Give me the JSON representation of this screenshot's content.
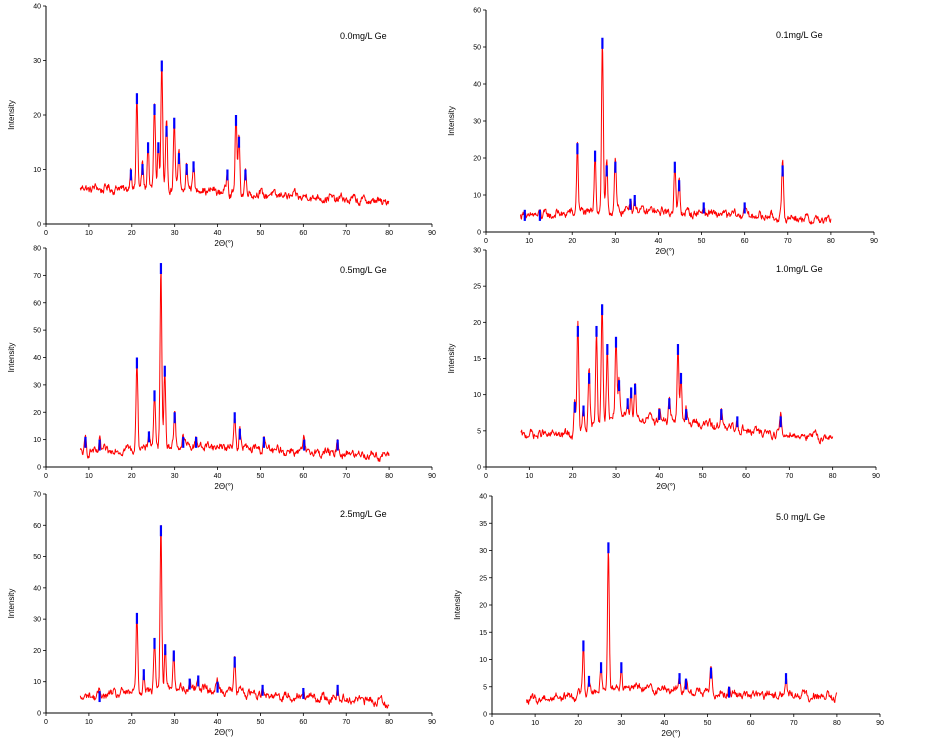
{
  "chart_data": [
    {
      "type": "line",
      "annotation": "0.0mg/L Ge",
      "xlabel": "2Θ(°)",
      "ylabel": "Intensity",
      "xlim": [
        0,
        90
      ],
      "ylim": [
        0,
        40
      ],
      "xticks": [
        0,
        10,
        20,
        30,
        40,
        50,
        60,
        70,
        80,
        90
      ],
      "yticks": [
        0,
        10,
        20,
        30,
        40
      ],
      "series": [
        {
          "color": "#ff0000",
          "baseline": 5.5,
          "x": [
            8,
            30,
            40,
            50,
            60,
            70,
            80
          ],
          "y": [
            6.5,
            6.5,
            6,
            5.5,
            5,
            4.5,
            4
          ]
        },
        {
          "color": "#0000ff"
        }
      ],
      "peaks": [
        [
          19.8,
          10
        ],
        [
          21.2,
          24
        ],
        [
          22.5,
          11
        ],
        [
          23.8,
          15
        ],
        [
          25.3,
          22
        ],
        [
          26.2,
          15
        ],
        [
          27.0,
          30
        ],
        [
          28.1,
          18
        ],
        [
          29.9,
          19.5
        ],
        [
          31.0,
          13
        ],
        [
          32.8,
          11
        ],
        [
          34.4,
          11.5
        ],
        [
          42.3,
          10
        ],
        [
          44.3,
          20
        ],
        [
          45.0,
          16
        ],
        [
          46.5,
          10
        ]
      ]
    },
    {
      "type": "line",
      "annotation": "0.1mg/L Ge",
      "xlabel": "2Θ(°)",
      "ylabel": "Intensity",
      "xlim": [
        0,
        90
      ],
      "ylim": [
        0,
        60
      ],
      "xticks": [
        0,
        10,
        20,
        30,
        40,
        50,
        60,
        70,
        80,
        90
      ],
      "yticks": [
        0,
        10,
        20,
        30,
        40,
        50,
        60
      ],
      "series": [
        {
          "color": "#ff0000",
          "baseline": 4,
          "x": [
            8,
            30,
            40,
            50,
            60,
            70,
            80
          ],
          "y": [
            4,
            6,
            5.5,
            5,
            4.5,
            4,
            3
          ]
        },
        {
          "color": "#0000ff"
        }
      ],
      "peaks": [
        [
          9,
          6
        ],
        [
          12.5,
          6
        ],
        [
          21.2,
          24
        ],
        [
          25.3,
          22
        ],
        [
          27.0,
          52.5
        ],
        [
          28.0,
          18
        ],
        [
          30.0,
          19
        ],
        [
          33.5,
          9
        ],
        [
          34.5,
          10
        ],
        [
          43.8,
          19
        ],
        [
          44.8,
          14
        ],
        [
          50.5,
          8
        ],
        [
          60.0,
          8
        ],
        [
          68.8,
          18
        ]
      ]
    },
    {
      "type": "line",
      "annotation": "0.5mg/L Ge",
      "xlabel": "2Θ(°)",
      "ylabel": "Intensity",
      "xlim": [
        0,
        90
      ],
      "ylim": [
        0,
        80
      ],
      "xticks": [
        0,
        10,
        20,
        30,
        40,
        50,
        60,
        70,
        80,
        90
      ],
      "yticks": [
        0,
        10,
        20,
        30,
        40,
        50,
        60,
        70,
        80
      ],
      "series": [
        {
          "color": "#ff0000",
          "baseline": 5,
          "x": [
            8,
            30,
            40,
            50,
            60,
            70,
            80
          ],
          "y": [
            5,
            8,
            7.5,
            6.5,
            5.5,
            5,
            4
          ]
        },
        {
          "color": "#0000ff"
        }
      ],
      "peaks": [
        [
          9.2,
          11
        ],
        [
          12.5,
          10
        ],
        [
          21.2,
          40
        ],
        [
          24.0,
          13
        ],
        [
          25.3,
          28
        ],
        [
          26.8,
          74.5
        ],
        [
          27.7,
          37
        ],
        [
          30.0,
          20
        ],
        [
          32.0,
          11
        ],
        [
          35.0,
          11
        ],
        [
          44.0,
          20
        ],
        [
          45.2,
          14
        ],
        [
          50.8,
          11
        ],
        [
          60.2,
          10
        ],
        [
          68.0,
          10
        ]
      ]
    },
    {
      "type": "line",
      "annotation": "1.0mg/L Ge",
      "xlabel": "2Θ(°)",
      "ylabel": "Intensity",
      "xlim": [
        0,
        90
      ],
      "ylim": [
        0,
        30
      ],
      "xticks": [
        0,
        10,
        20,
        30,
        40,
        50,
        60,
        70,
        80,
        90
      ],
      "yticks": [
        0,
        5,
        10,
        15,
        20,
        25,
        30
      ],
      "series": [
        {
          "color": "#ff0000",
          "baseline": 4.5,
          "x": [
            8,
            20,
            30,
            40,
            50,
            60,
            70,
            80
          ],
          "y": [
            4.5,
            4.5,
            7,
            6.5,
            6,
            5,
            4.5,
            4
          ]
        },
        {
          "color": "#0000ff"
        }
      ],
      "peaks": [
        [
          20.5,
          9
        ],
        [
          21.2,
          19.5
        ],
        [
          22.5,
          8.5
        ],
        [
          23.8,
          13
        ],
        [
          25.5,
          19.5
        ],
        [
          26.8,
          22.5
        ],
        [
          28.0,
          17
        ],
        [
          30.0,
          18
        ],
        [
          30.7,
          12
        ],
        [
          32.7,
          9.5
        ],
        [
          33.5,
          11
        ],
        [
          34.4,
          11.5
        ],
        [
          40.0,
          8
        ],
        [
          42.3,
          9.5
        ],
        [
          44.3,
          17
        ],
        [
          45.0,
          13
        ],
        [
          46.2,
          8
        ],
        [
          54.3,
          8
        ],
        [
          58.0,
          7
        ],
        [
          68.0,
          7
        ]
      ]
    },
    {
      "type": "line",
      "annotation": "2.5mg/L Ge",
      "xlabel": "2Θ(°)",
      "ylabel": "Intensity",
      "xlim": [
        0,
        90
      ],
      "ylim": [
        0,
        70
      ],
      "xticks": [
        0,
        10,
        20,
        30,
        40,
        50,
        60,
        70,
        80,
        90
      ],
      "yticks": [
        0,
        10,
        20,
        30,
        40,
        50,
        60,
        70
      ],
      "series": [
        {
          "color": "#ff0000",
          "baseline": 5,
          "x": [
            8,
            30,
            40,
            50,
            60,
            70,
            80
          ],
          "y": [
            5,
            8,
            7.5,
            6,
            5,
            4.5,
            3.5
          ]
        },
        {
          "color": "#0000ff"
        }
      ],
      "peaks": [
        [
          12.5,
          7
        ],
        [
          21.2,
          32
        ],
        [
          22.8,
          14
        ],
        [
          25.3,
          24
        ],
        [
          26.8,
          60
        ],
        [
          27.8,
          22
        ],
        [
          29.8,
          20
        ],
        [
          33.5,
          11
        ],
        [
          35.5,
          12
        ],
        [
          40.0,
          10
        ],
        [
          44.0,
          18
        ],
        [
          50.5,
          9
        ],
        [
          60.0,
          8
        ],
        [
          68.0,
          9
        ]
      ]
    },
    {
      "type": "line",
      "annotation": "5.0 mg/L Ge",
      "xlabel": "2Θ(°)",
      "ylabel": "Intensity",
      "xlim": [
        0,
        90
      ],
      "ylim": [
        0,
        40
      ],
      "xticks": [
        0,
        10,
        20,
        30,
        40,
        50,
        60,
        70,
        80,
        90
      ],
      "yticks": [
        0,
        5,
        10,
        15,
        20,
        25,
        30,
        35,
        40
      ],
      "series": [
        {
          "color": "#ff0000",
          "baseline": 3,
          "x": [
            8,
            20,
            30,
            40,
            50,
            60,
            70,
            80
          ],
          "y": [
            2.5,
            3.5,
            5,
            4.5,
            4,
            3.5,
            3.5,
            3
          ]
        },
        {
          "color": "#0000ff"
        }
      ],
      "peaks": [
        [
          21.2,
          13.5
        ],
        [
          22.5,
          7
        ],
        [
          25.3,
          9.5
        ],
        [
          27.0,
          31.5
        ],
        [
          30.0,
          9.5
        ],
        [
          43.5,
          7.5
        ],
        [
          45.0,
          6.5
        ],
        [
          50.8,
          8.5
        ],
        [
          55.0,
          5
        ],
        [
          68.2,
          7.5
        ]
      ]
    }
  ]
}
